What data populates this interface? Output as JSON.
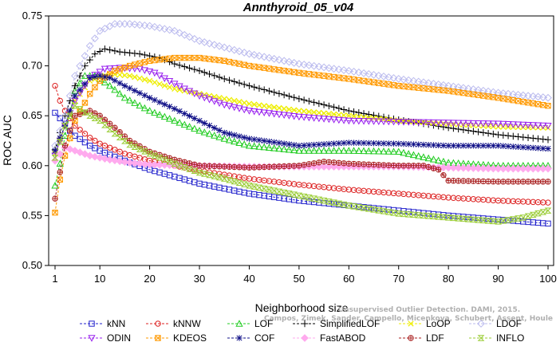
{
  "chart_data": {
    "type": "line",
    "title": "Annthyroid_05_v04",
    "xlabel": "Neighborhood size",
    "ylabel": "ROC AUC",
    "xlim": [
      1,
      100
    ],
    "ylim": [
      0.5,
      0.75
    ],
    "xticks": [
      1,
      10,
      20,
      30,
      40,
      50,
      60,
      70,
      80,
      90,
      100
    ],
    "yticks": [
      "0.50",
      "0.55",
      "0.60",
      "0.65",
      "0.70",
      "0.75"
    ],
    "grid": false,
    "legend_position": "bottom",
    "watermark": [
      "Unsupervised Outlier Detection. DAMI, 2015.",
      "Campos, Zimek, Sander, Campello, Micenkova, Schubert, Assent, Houle"
    ],
    "series": [
      {
        "name": "kNN",
        "color": "#2222cc",
        "marker": "square",
        "points": [
          [
            1,
            0.653
          ],
          [
            3,
            0.642
          ],
          [
            4,
            0.635
          ],
          [
            5,
            0.63
          ],
          [
            8,
            0.62
          ],
          [
            10,
            0.615
          ],
          [
            15,
            0.605
          ],
          [
            20,
            0.596
          ],
          [
            30,
            0.582
          ],
          [
            40,
            0.572
          ],
          [
            50,
            0.565
          ],
          [
            60,
            0.56
          ],
          [
            70,
            0.555
          ],
          [
            80,
            0.55
          ],
          [
            90,
            0.546
          ],
          [
            100,
            0.542
          ]
        ]
      },
      {
        "name": "kNNW",
        "color": "#dd2222",
        "marker": "circle",
        "points": [
          [
            1,
            0.68
          ],
          [
            2,
            0.665
          ],
          [
            3,
            0.655
          ],
          [
            5,
            0.64
          ],
          [
            8,
            0.628
          ],
          [
            10,
            0.622
          ],
          [
            15,
            0.612
          ],
          [
            20,
            0.605
          ],
          [
            30,
            0.595
          ],
          [
            40,
            0.587
          ],
          [
            50,
            0.581
          ],
          [
            60,
            0.576
          ],
          [
            70,
            0.572
          ],
          [
            80,
            0.568
          ],
          [
            90,
            0.565
          ],
          [
            100,
            0.563
          ]
        ]
      },
      {
        "name": "LOF",
        "color": "#22cc22",
        "marker": "triangle-up",
        "points": [
          [
            1,
            0.58
          ],
          [
            2,
            0.602
          ],
          [
            3,
            0.63
          ],
          [
            5,
            0.675
          ],
          [
            7,
            0.69
          ],
          [
            9,
            0.69
          ],
          [
            12,
            0.68
          ],
          [
            15,
            0.668
          ],
          [
            20,
            0.655
          ],
          [
            25,
            0.645
          ],
          [
            30,
            0.635
          ],
          [
            35,
            0.627
          ],
          [
            40,
            0.62
          ],
          [
            50,
            0.615
          ],
          [
            60,
            0.615
          ],
          [
            70,
            0.614
          ],
          [
            80,
            0.603
          ],
          [
            90,
            0.6
          ],
          [
            100,
            0.6
          ]
        ]
      },
      {
        "name": "SimplifiedLOF",
        "color": "#000000",
        "marker": "plus",
        "points": [
          [
            1,
            0.616
          ],
          [
            3,
            0.65
          ],
          [
            5,
            0.68
          ],
          [
            7,
            0.7
          ],
          [
            9,
            0.712
          ],
          [
            11,
            0.717
          ],
          [
            14,
            0.714
          ],
          [
            18,
            0.712
          ],
          [
            22,
            0.708
          ],
          [
            25,
            0.702
          ],
          [
            30,
            0.695
          ],
          [
            35,
            0.687
          ],
          [
            40,
            0.68
          ],
          [
            50,
            0.667
          ],
          [
            60,
            0.655
          ],
          [
            70,
            0.646
          ],
          [
            80,
            0.638
          ],
          [
            90,
            0.631
          ],
          [
            100,
            0.626
          ]
        ]
      },
      {
        "name": "LoOP",
        "color": "#eeee00",
        "marker": "x",
        "points": [
          [
            1,
            0.612
          ],
          [
            3,
            0.64
          ],
          [
            5,
            0.665
          ],
          [
            8,
            0.685
          ],
          [
            12,
            0.692
          ],
          [
            16,
            0.69
          ],
          [
            20,
            0.685
          ],
          [
            25,
            0.677
          ],
          [
            30,
            0.672
          ],
          [
            40,
            0.662
          ],
          [
            50,
            0.655
          ],
          [
            60,
            0.65
          ],
          [
            70,
            0.645
          ],
          [
            80,
            0.642
          ],
          [
            90,
            0.639
          ],
          [
            100,
            0.638
          ]
        ]
      },
      {
        "name": "LDOF",
        "color": "#bbbbee",
        "marker": "diamond",
        "points": [
          [
            1,
            0.62
          ],
          [
            3,
            0.65
          ],
          [
            5,
            0.69
          ],
          [
            8,
            0.72
          ],
          [
            10,
            0.735
          ],
          [
            13,
            0.742
          ],
          [
            16,
            0.742
          ],
          [
            20,
            0.74
          ],
          [
            25,
            0.735
          ],
          [
            30,
            0.725
          ],
          [
            40,
            0.712
          ],
          [
            50,
            0.702
          ],
          [
            60,
            0.695
          ],
          [
            70,
            0.687
          ],
          [
            80,
            0.68
          ],
          [
            90,
            0.673
          ],
          [
            100,
            0.668
          ]
        ]
      },
      {
        "name": "ODIN",
        "color": "#9922ee",
        "marker": "triangle-down",
        "points": [
          [
            1,
            0.61
          ],
          [
            3,
            0.64
          ],
          [
            5,
            0.665
          ],
          [
            8,
            0.688
          ],
          [
            11,
            0.697
          ],
          [
            14,
            0.698
          ],
          [
            18,
            0.697
          ],
          [
            21,
            0.693
          ],
          [
            25,
            0.682
          ],
          [
            30,
            0.67
          ],
          [
            35,
            0.661
          ],
          [
            40,
            0.655
          ],
          [
            50,
            0.649
          ],
          [
            60,
            0.645
          ],
          [
            70,
            0.644
          ],
          [
            80,
            0.643
          ],
          [
            90,
            0.642
          ],
          [
            100,
            0.64
          ]
        ]
      },
      {
        "name": "KDEOS",
        "color": "#ff9900",
        "marker": "square-x",
        "points": [
          [
            1,
            0.553
          ],
          [
            2,
            0.586
          ],
          [
            3,
            0.61
          ],
          [
            5,
            0.645
          ],
          [
            8,
            0.672
          ],
          [
            10,
            0.685
          ],
          [
            13,
            0.695
          ],
          [
            16,
            0.7
          ],
          [
            20,
            0.705
          ],
          [
            25,
            0.708
          ],
          [
            30,
            0.708
          ],
          [
            35,
            0.705
          ],
          [
            40,
            0.7
          ],
          [
            50,
            0.693
          ],
          [
            60,
            0.687
          ],
          [
            70,
            0.68
          ],
          [
            80,
            0.675
          ],
          [
            90,
            0.668
          ],
          [
            100,
            0.66
          ]
        ]
      },
      {
        "name": "COF",
        "color": "#111188",
        "marker": "star",
        "points": [
          [
            1,
            0.615
          ],
          [
            3,
            0.64
          ],
          [
            5,
            0.67
          ],
          [
            8,
            0.688
          ],
          [
            10,
            0.69
          ],
          [
            12,
            0.688
          ],
          [
            15,
            0.68
          ],
          [
            20,
            0.668
          ],
          [
            25,
            0.657
          ],
          [
            30,
            0.645
          ],
          [
            35,
            0.633
          ],
          [
            40,
            0.627
          ],
          [
            50,
            0.62
          ],
          [
            60,
            0.623
          ],
          [
            70,
            0.622
          ],
          [
            80,
            0.62
          ],
          [
            90,
            0.62
          ],
          [
            100,
            0.617
          ]
        ]
      },
      {
        "name": "FastABOD",
        "color": "#ffaaee",
        "marker": "diamond-filled",
        "points": [
          [
            1,
            0.605
          ],
          [
            3,
            0.618
          ],
          [
            5,
            0.615
          ],
          [
            8,
            0.61
          ],
          [
            12,
            0.606
          ],
          [
            16,
            0.603
          ],
          [
            20,
            0.601
          ],
          [
            30,
            0.6
          ],
          [
            40,
            0.599
          ],
          [
            50,
            0.599
          ],
          [
            60,
            0.599
          ],
          [
            70,
            0.599
          ],
          [
            80,
            0.598
          ],
          [
            90,
            0.597
          ],
          [
            100,
            0.597
          ]
        ]
      },
      {
        "name": "LDF",
        "color": "#aa2222",
        "marker": "circle-plus",
        "points": [
          [
            1,
            0.567
          ],
          [
            3,
            0.62
          ],
          [
            5,
            0.65
          ],
          [
            8,
            0.655
          ],
          [
            10,
            0.65
          ],
          [
            13,
            0.638
          ],
          [
            16,
            0.625
          ],
          [
            20,
            0.614
          ],
          [
            25,
            0.606
          ],
          [
            30,
            0.6
          ],
          [
            40,
            0.598
          ],
          [
            50,
            0.6
          ],
          [
            55,
            0.604
          ],
          [
            60,
            0.602
          ],
          [
            70,
            0.6
          ],
          [
            75,
            0.6
          ],
          [
            78,
            0.596
          ],
          [
            80,
            0.585
          ],
          [
            90,
            0.584
          ],
          [
            100,
            0.584
          ]
        ]
      },
      {
        "name": "INFLO",
        "color": "#99cc33",
        "marker": "hourglass",
        "points": [
          [
            1,
            0.608
          ],
          [
            3,
            0.64
          ],
          [
            5,
            0.66
          ],
          [
            8,
            0.65
          ],
          [
            10,
            0.645
          ],
          [
            13,
            0.632
          ],
          [
            16,
            0.621
          ],
          [
            20,
            0.612
          ],
          [
            25,
            0.602
          ],
          [
            30,
            0.593
          ],
          [
            35,
            0.587
          ],
          [
            40,
            0.58
          ],
          [
            50,
            0.57
          ],
          [
            60,
            0.56
          ],
          [
            70,
            0.552
          ],
          [
            80,
            0.548
          ],
          [
            90,
            0.544
          ],
          [
            95,
            0.548
          ],
          [
            100,
            0.555
          ]
        ]
      }
    ]
  }
}
